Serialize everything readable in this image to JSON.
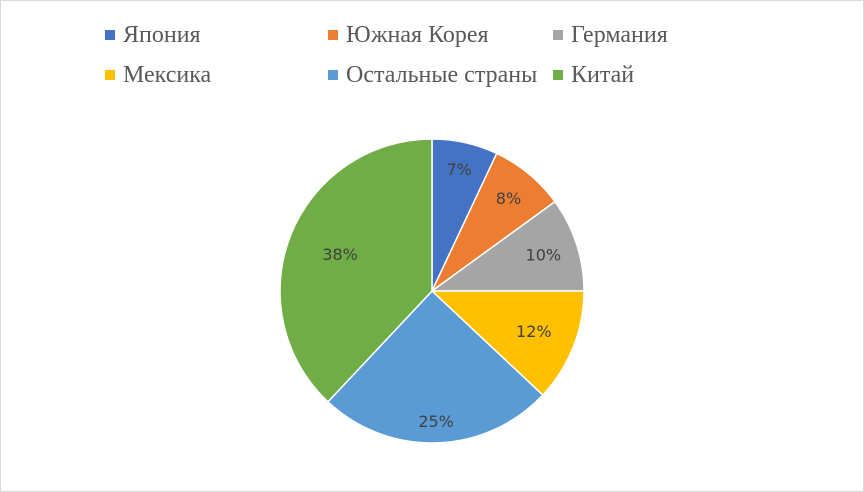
{
  "chart_data": {
    "type": "pie",
    "title": "",
    "legend_position": "top",
    "slices": [
      {
        "name": "Япония",
        "value": 7,
        "label": "7%",
        "color": "#4472C4"
      },
      {
        "name": "Южная Корея",
        "value": 8,
        "label": "8%",
        "color": "#ED7D31"
      },
      {
        "name": "Германия",
        "value": 10,
        "label": "10%",
        "color": "#A5A5A5"
      },
      {
        "name": "Мексика",
        "value": 12,
        "label": "12%",
        "color": "#FFC000"
      },
      {
        "name": "Остальные страны",
        "value": 25,
        "label": "25%",
        "color": "#5B9BD5"
      },
      {
        "name": "Китай",
        "value": 38,
        "label": "38%",
        "color": "#70AD47"
      }
    ]
  }
}
